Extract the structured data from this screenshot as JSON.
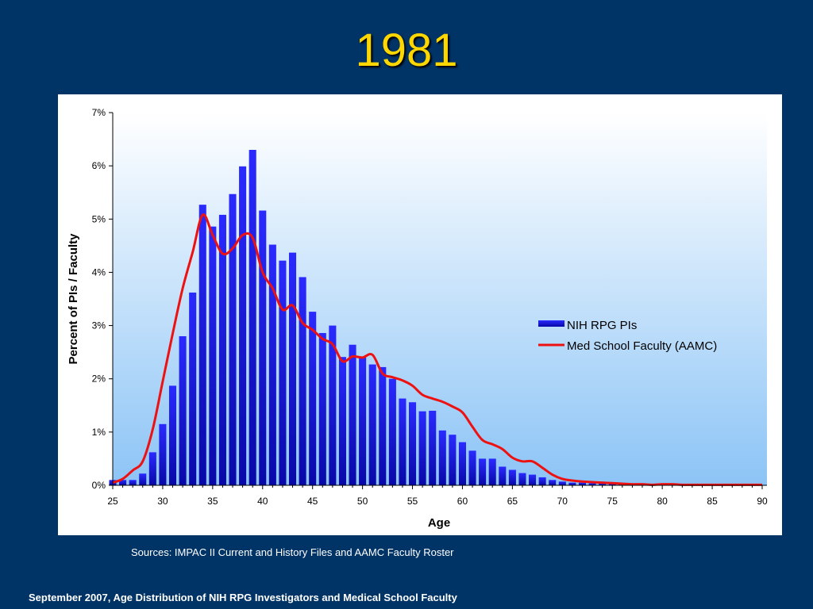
{
  "slide": {
    "title": "1981",
    "sources": "Sources:  IMPAC II Current and History Files and AAMC Faculty Roster",
    "footer": "September 2007, Age Distribution of NIH RPG Investigators and Medical School Faculty"
  },
  "colors": {
    "background": "#003366",
    "title": "#ffd700",
    "bar": "#1010e8",
    "line": "#ee1111",
    "plot_gradient_top": "#ffffff",
    "plot_gradient_bottom": "#8cc4f6"
  },
  "chart_data": {
    "type": "bar",
    "title": "",
    "xlabel": "Age",
    "ylabel": "Percent of PIs / Faculty",
    "xlim": [
      25,
      90
    ],
    "ylim": [
      0,
      7
    ],
    "x_ticks": [
      "25",
      "30",
      "35",
      "40",
      "45",
      "50",
      "55",
      "60",
      "65",
      "70",
      "75",
      "80",
      "85",
      "90"
    ],
    "y_ticks": [
      "0%",
      "1%",
      "2%",
      "3%",
      "4%",
      "5%",
      "6%",
      "7%"
    ],
    "legend_position": "right",
    "grid": false,
    "series": [
      {
        "name": "NIH RPG PIs",
        "type": "bar",
        "x": [
          25,
          26,
          27,
          28,
          29,
          30,
          31,
          32,
          33,
          34,
          35,
          36,
          37,
          38,
          39,
          40,
          41,
          42,
          43,
          44,
          45,
          46,
          47,
          48,
          49,
          50,
          51,
          52,
          53,
          54,
          55,
          56,
          57,
          58,
          59,
          60,
          61,
          62,
          63,
          64,
          65,
          66,
          67,
          68,
          69,
          70,
          71,
          72,
          73,
          74,
          75,
          76,
          77,
          78,
          79,
          80,
          81,
          82,
          83,
          84,
          85,
          86,
          87,
          88,
          89,
          90
        ],
        "values": [
          0.1,
          0.1,
          0.1,
          0.22,
          0.62,
          1.15,
          1.87,
          2.8,
          3.62,
          5.27,
          4.86,
          5.08,
          5.47,
          5.99,
          6.3,
          5.16,
          4.52,
          4.22,
          4.37,
          3.91,
          3.26,
          2.86,
          3.0,
          2.41,
          2.64,
          2.4,
          2.27,
          2.22,
          2.0,
          1.63,
          1.56,
          1.39,
          1.4,
          1.03,
          0.95,
          0.81,
          0.65,
          0.5,
          0.5,
          0.35,
          0.29,
          0.23,
          0.2,
          0.15,
          0.1,
          0.07,
          0.05,
          0.05,
          0.04,
          0.04,
          0.03,
          0.02,
          0.02,
          0.01,
          0.01,
          0.01,
          0.01,
          0,
          0,
          0,
          0,
          0,
          0,
          0,
          0,
          0
        ]
      },
      {
        "name": "Med School Faculty (AAMC)",
        "type": "line",
        "x": [
          25,
          26,
          27,
          28,
          29,
          30,
          31,
          32,
          33,
          34,
          35,
          36,
          37,
          38,
          39,
          40,
          41,
          42,
          43,
          44,
          45,
          46,
          47,
          48,
          49,
          50,
          51,
          52,
          53,
          54,
          55,
          56,
          57,
          58,
          59,
          60,
          61,
          62,
          63,
          64,
          65,
          66,
          67,
          68,
          69,
          70,
          71,
          72,
          73,
          74,
          75,
          76,
          77,
          78,
          79,
          80,
          81,
          82,
          83,
          84,
          85,
          86,
          87,
          88,
          89,
          90
        ],
        "values": [
          0.05,
          0.12,
          0.28,
          0.45,
          1.05,
          1.95,
          2.85,
          3.7,
          4.38,
          5.08,
          4.7,
          4.35,
          4.45,
          4.7,
          4.65,
          4.0,
          3.7,
          3.3,
          3.38,
          3.05,
          2.92,
          2.75,
          2.65,
          2.33,
          2.42,
          2.4,
          2.45,
          2.1,
          2.03,
          1.97,
          1.87,
          1.7,
          1.63,
          1.57,
          1.48,
          1.37,
          1.1,
          0.85,
          0.77,
          0.68,
          0.52,
          0.45,
          0.45,
          0.33,
          0.2,
          0.12,
          0.09,
          0.07,
          0.06,
          0.05,
          0.04,
          0.03,
          0.02,
          0.02,
          0.01,
          0.02,
          0.02,
          0.01,
          0.01,
          0.01,
          0.01,
          0.01,
          0.01,
          0.01,
          0.01,
          0.01
        ]
      }
    ]
  }
}
